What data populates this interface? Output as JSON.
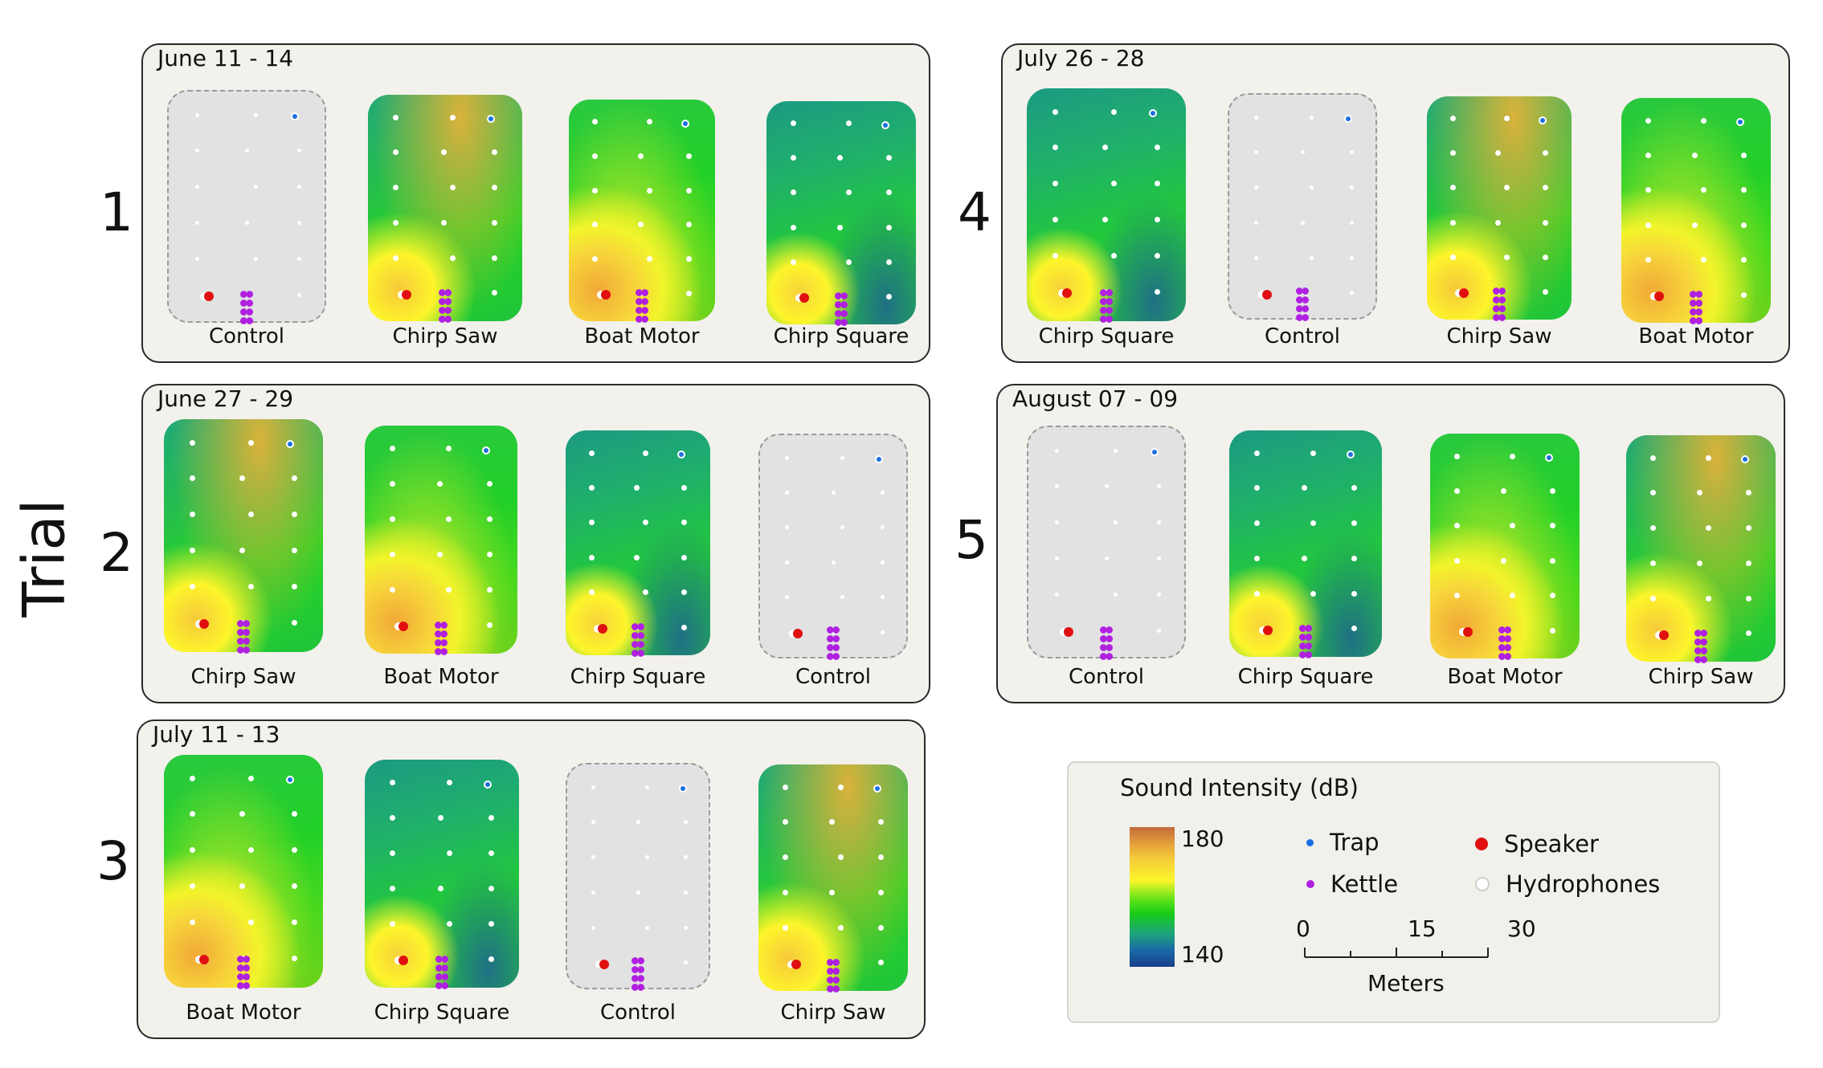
{
  "axis": {
    "ylabel": "Trial"
  },
  "trials": [
    {
      "num": "1",
      "date": "June 11 - 14",
      "plots": [
        "Control",
        "Chirp Saw",
        "Boat Motor",
        "Chirp Square"
      ]
    },
    {
      "num": "2",
      "date": "June 27 - 29",
      "plots": [
        "Chirp Saw",
        "Boat Motor",
        "Chirp Square",
        "Control"
      ]
    },
    {
      "num": "3",
      "date": "July 11 - 13",
      "plots": [
        "Boat Motor",
        "Chirp Square",
        "Control",
        "Chirp Saw"
      ]
    },
    {
      "num": "4",
      "date": "July 26 - 28",
      "plots": [
        "Chirp Square",
        "Control",
        "Chirp Saw",
        "Boat Motor"
      ]
    },
    {
      "num": "5",
      "date": "August 07 - 09",
      "plots": [
        "Control",
        "Chirp Square",
        "Boat Motor",
        "Chirp Saw"
      ]
    }
  ],
  "legend": {
    "title": "Sound Intensity (dB)",
    "max": "180",
    "min": "140",
    "items": {
      "trap": "Trap",
      "kettle": "Kettle",
      "speaker": "Speaker",
      "hydrophones": "Hydrophones"
    },
    "scale": {
      "t0": "0",
      "t1": "15",
      "t2": "30",
      "unit": "Meters"
    }
  },
  "colors": {
    "trap": "#1a6fe0",
    "kettle": "#b020e0",
    "speaker": "#e01010",
    "hydrophone": "#ffffff",
    "hot": "#e3a03a",
    "warm": "#f4e03a",
    "green": "#18cc18",
    "teal": "#1ea57a"
  }
}
